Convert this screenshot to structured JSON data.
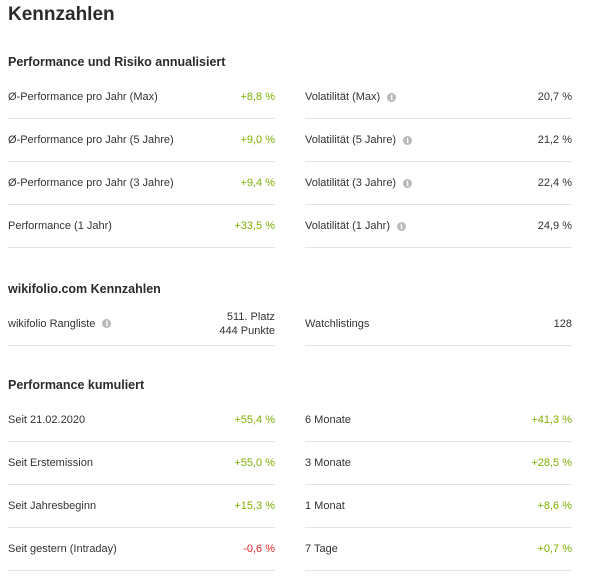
{
  "title": "Kennzahlen",
  "colors": {
    "positive": "#7cb000",
    "negative": "#e3262c",
    "divider": "#e3e3e3"
  },
  "section1": {
    "title": "Performance und Risiko annualisiert",
    "left": [
      {
        "label": "Ø-Performance pro Jahr (Max)",
        "value": "+8,8 %"
      },
      {
        "label": "Ø-Performance pro Jahr (5 Jahre)",
        "value": "+9,0 %"
      },
      {
        "label": "Ø-Performance pro Jahr (3 Jahre)",
        "value": "+9,4 %"
      },
      {
        "label": "Performance (1 Jahr)",
        "value": "+33,5 %"
      }
    ],
    "right": [
      {
        "label": "Volatilität (Max)",
        "value": "20,7 %",
        "icon": "info-icon"
      },
      {
        "label": "Volatilität (5 Jahre)",
        "value": "21,2 %",
        "icon": "info-icon"
      },
      {
        "label": "Volatilität (3 Jahre)",
        "value": "22,4 %",
        "icon": "info-icon"
      },
      {
        "label": "Volatilität (1 Jahr)",
        "value": "24,9 %",
        "icon": "info-icon"
      }
    ]
  },
  "section2": {
    "title": "wikifolio.com Kennzahlen",
    "rangliste": {
      "label": "wikifolio Rangliste",
      "icon": "info-icon",
      "platz": "511. Platz",
      "punkte": "444 Punkte"
    },
    "watchlistings": {
      "label": "Watchlistings",
      "value": "128"
    }
  },
  "section3": {
    "title": "Performance kumuliert",
    "left": [
      {
        "label": "Seit 21.02.2020",
        "value": "+55,4 %"
      },
      {
        "label": "Seit Erstemission",
        "value": "+55,0 %"
      },
      {
        "label": "Seit Jahresbeginn",
        "value": "+15,3 %"
      },
      {
        "label": "Seit gestern (Intraday)",
        "value": "-0,6 %"
      }
    ],
    "right": [
      {
        "label": "6 Monate",
        "value": "+41,3 %"
      },
      {
        "label": "3 Monate",
        "value": "+28,5 %"
      },
      {
        "label": "1 Monat",
        "value": "+8,6 %"
      },
      {
        "label": "7 Tage",
        "value": "+0,7 %"
      }
    ]
  }
}
